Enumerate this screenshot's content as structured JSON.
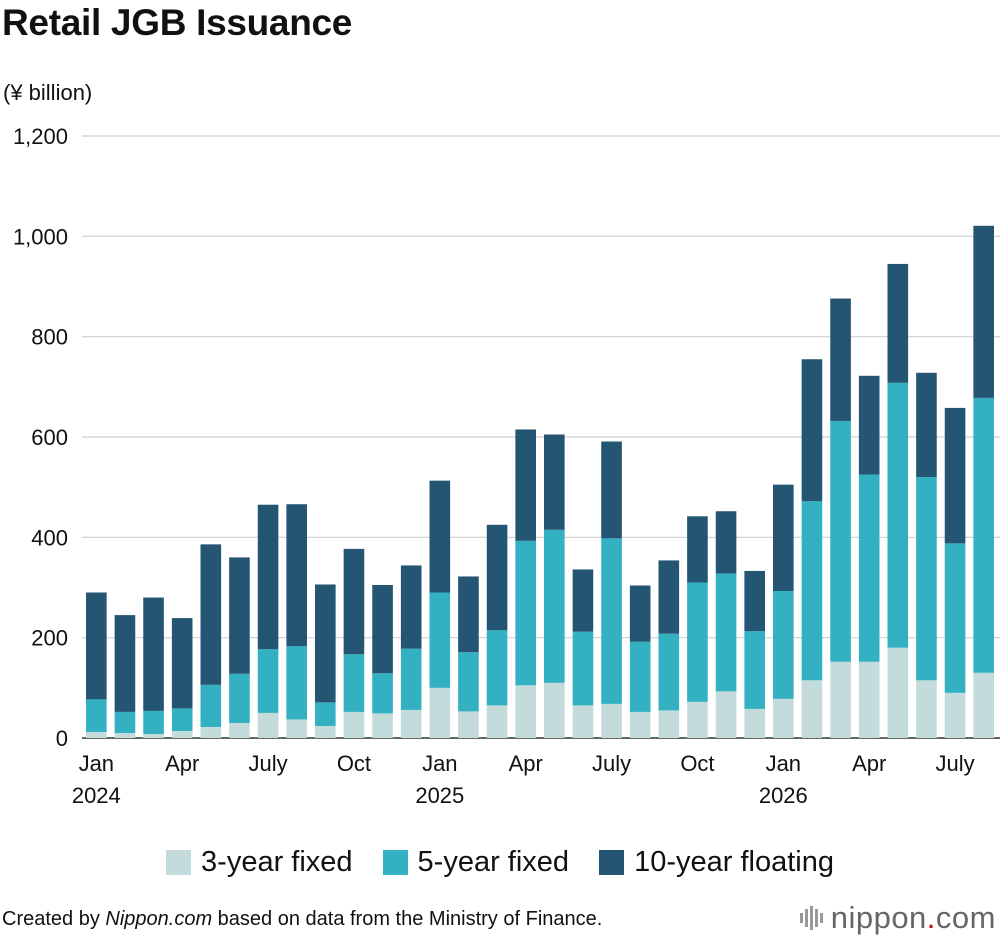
{
  "title": "Retail JGB Issuance",
  "unit_label": "(¥ billion)",
  "legend": [
    {
      "label": "3-year fixed",
      "color": "#c3dcdb"
    },
    {
      "label": "5-year fixed",
      "color": "#33b0c2"
    },
    {
      "label": "10-year floating",
      "color": "#245572"
    }
  ],
  "footer": {
    "prefix": "Created by ",
    "source_site": "Nippon.com",
    "suffix": " based on data from the Ministry of Finance."
  },
  "logo": {
    "name": "nippon",
    "dot": ".",
    "tld": "com"
  },
  "chart_data": {
    "type": "bar",
    "stacked": true,
    "ylim": [
      0,
      1200
    ],
    "y_ticks": [
      0,
      200,
      400,
      600,
      800,
      1000,
      1200
    ],
    "y_tick_labels": [
      "0",
      "200",
      "400",
      "600",
      "800",
      "1,000",
      "1,200"
    ],
    "grid": true,
    "x_tick_labels": [
      {
        "index": 0,
        "lines": [
          "Jan",
          "2024"
        ]
      },
      {
        "index": 3,
        "lines": [
          "Apr"
        ]
      },
      {
        "index": 6,
        "lines": [
          "July"
        ]
      },
      {
        "index": 9,
        "lines": [
          "Oct"
        ]
      },
      {
        "index": 12,
        "lines": [
          "Jan",
          "2025"
        ]
      },
      {
        "index": 15,
        "lines": [
          "Apr"
        ]
      },
      {
        "index": 18,
        "lines": [
          "July"
        ]
      },
      {
        "index": 21,
        "lines": [
          "Oct"
        ]
      },
      {
        "index": 24,
        "lines": [
          "Jan",
          "2026"
        ]
      },
      {
        "index": 27,
        "lines": [
          "Apr"
        ]
      },
      {
        "index": 30,
        "lines": [
          "July"
        ]
      }
    ],
    "categories": [
      "2024-01",
      "2024-02",
      "2024-03",
      "2024-04",
      "2024-05",
      "2024-06",
      "2024-07",
      "2024-08",
      "2024-09",
      "2024-10",
      "2024-11",
      "2024-12",
      "2025-01",
      "2025-02",
      "2025-03",
      "2025-04",
      "2025-05",
      "2025-06",
      "2025-07",
      "2025-08",
      "2025-09",
      "2025-10",
      "2025-11",
      "2025-12",
      "2026-01",
      "2026-02",
      "2026-03",
      "2026-04",
      "2026-05",
      "2026-06",
      "2026-07",
      "2026-08"
    ],
    "series": [
      {
        "name": "3-year fixed",
        "values": [
          12,
          10,
          8,
          14,
          22,
          30,
          50,
          37,
          24,
          52,
          49,
          56,
          100,
          53,
          65,
          105,
          110,
          65,
          68,
          52,
          55,
          72,
          93,
          58,
          78,
          115,
          152,
          152,
          180,
          115,
          90,
          130
        ]
      },
      {
        "name": "5-year fixed",
        "values": [
          65,
          42,
          46,
          45,
          84,
          98,
          127,
          146,
          47,
          115,
          80,
          122,
          190,
          118,
          150,
          288,
          305,
          147,
          330,
          140,
          153,
          238,
          235,
          155,
          215,
          357,
          480,
          373,
          528,
          405,
          298,
          548
        ]
      },
      {
        "name": "10-year floating",
        "values": [
          213,
          193,
          226,
          180,
          280,
          232,
          288,
          283,
          235,
          210,
          176,
          166,
          223,
          151,
          210,
          222,
          190,
          124,
          193,
          112,
          146,
          132,
          124,
          120,
          212,
          283,
          244,
          197,
          237,
          208,
          270,
          343
        ]
      }
    ]
  }
}
